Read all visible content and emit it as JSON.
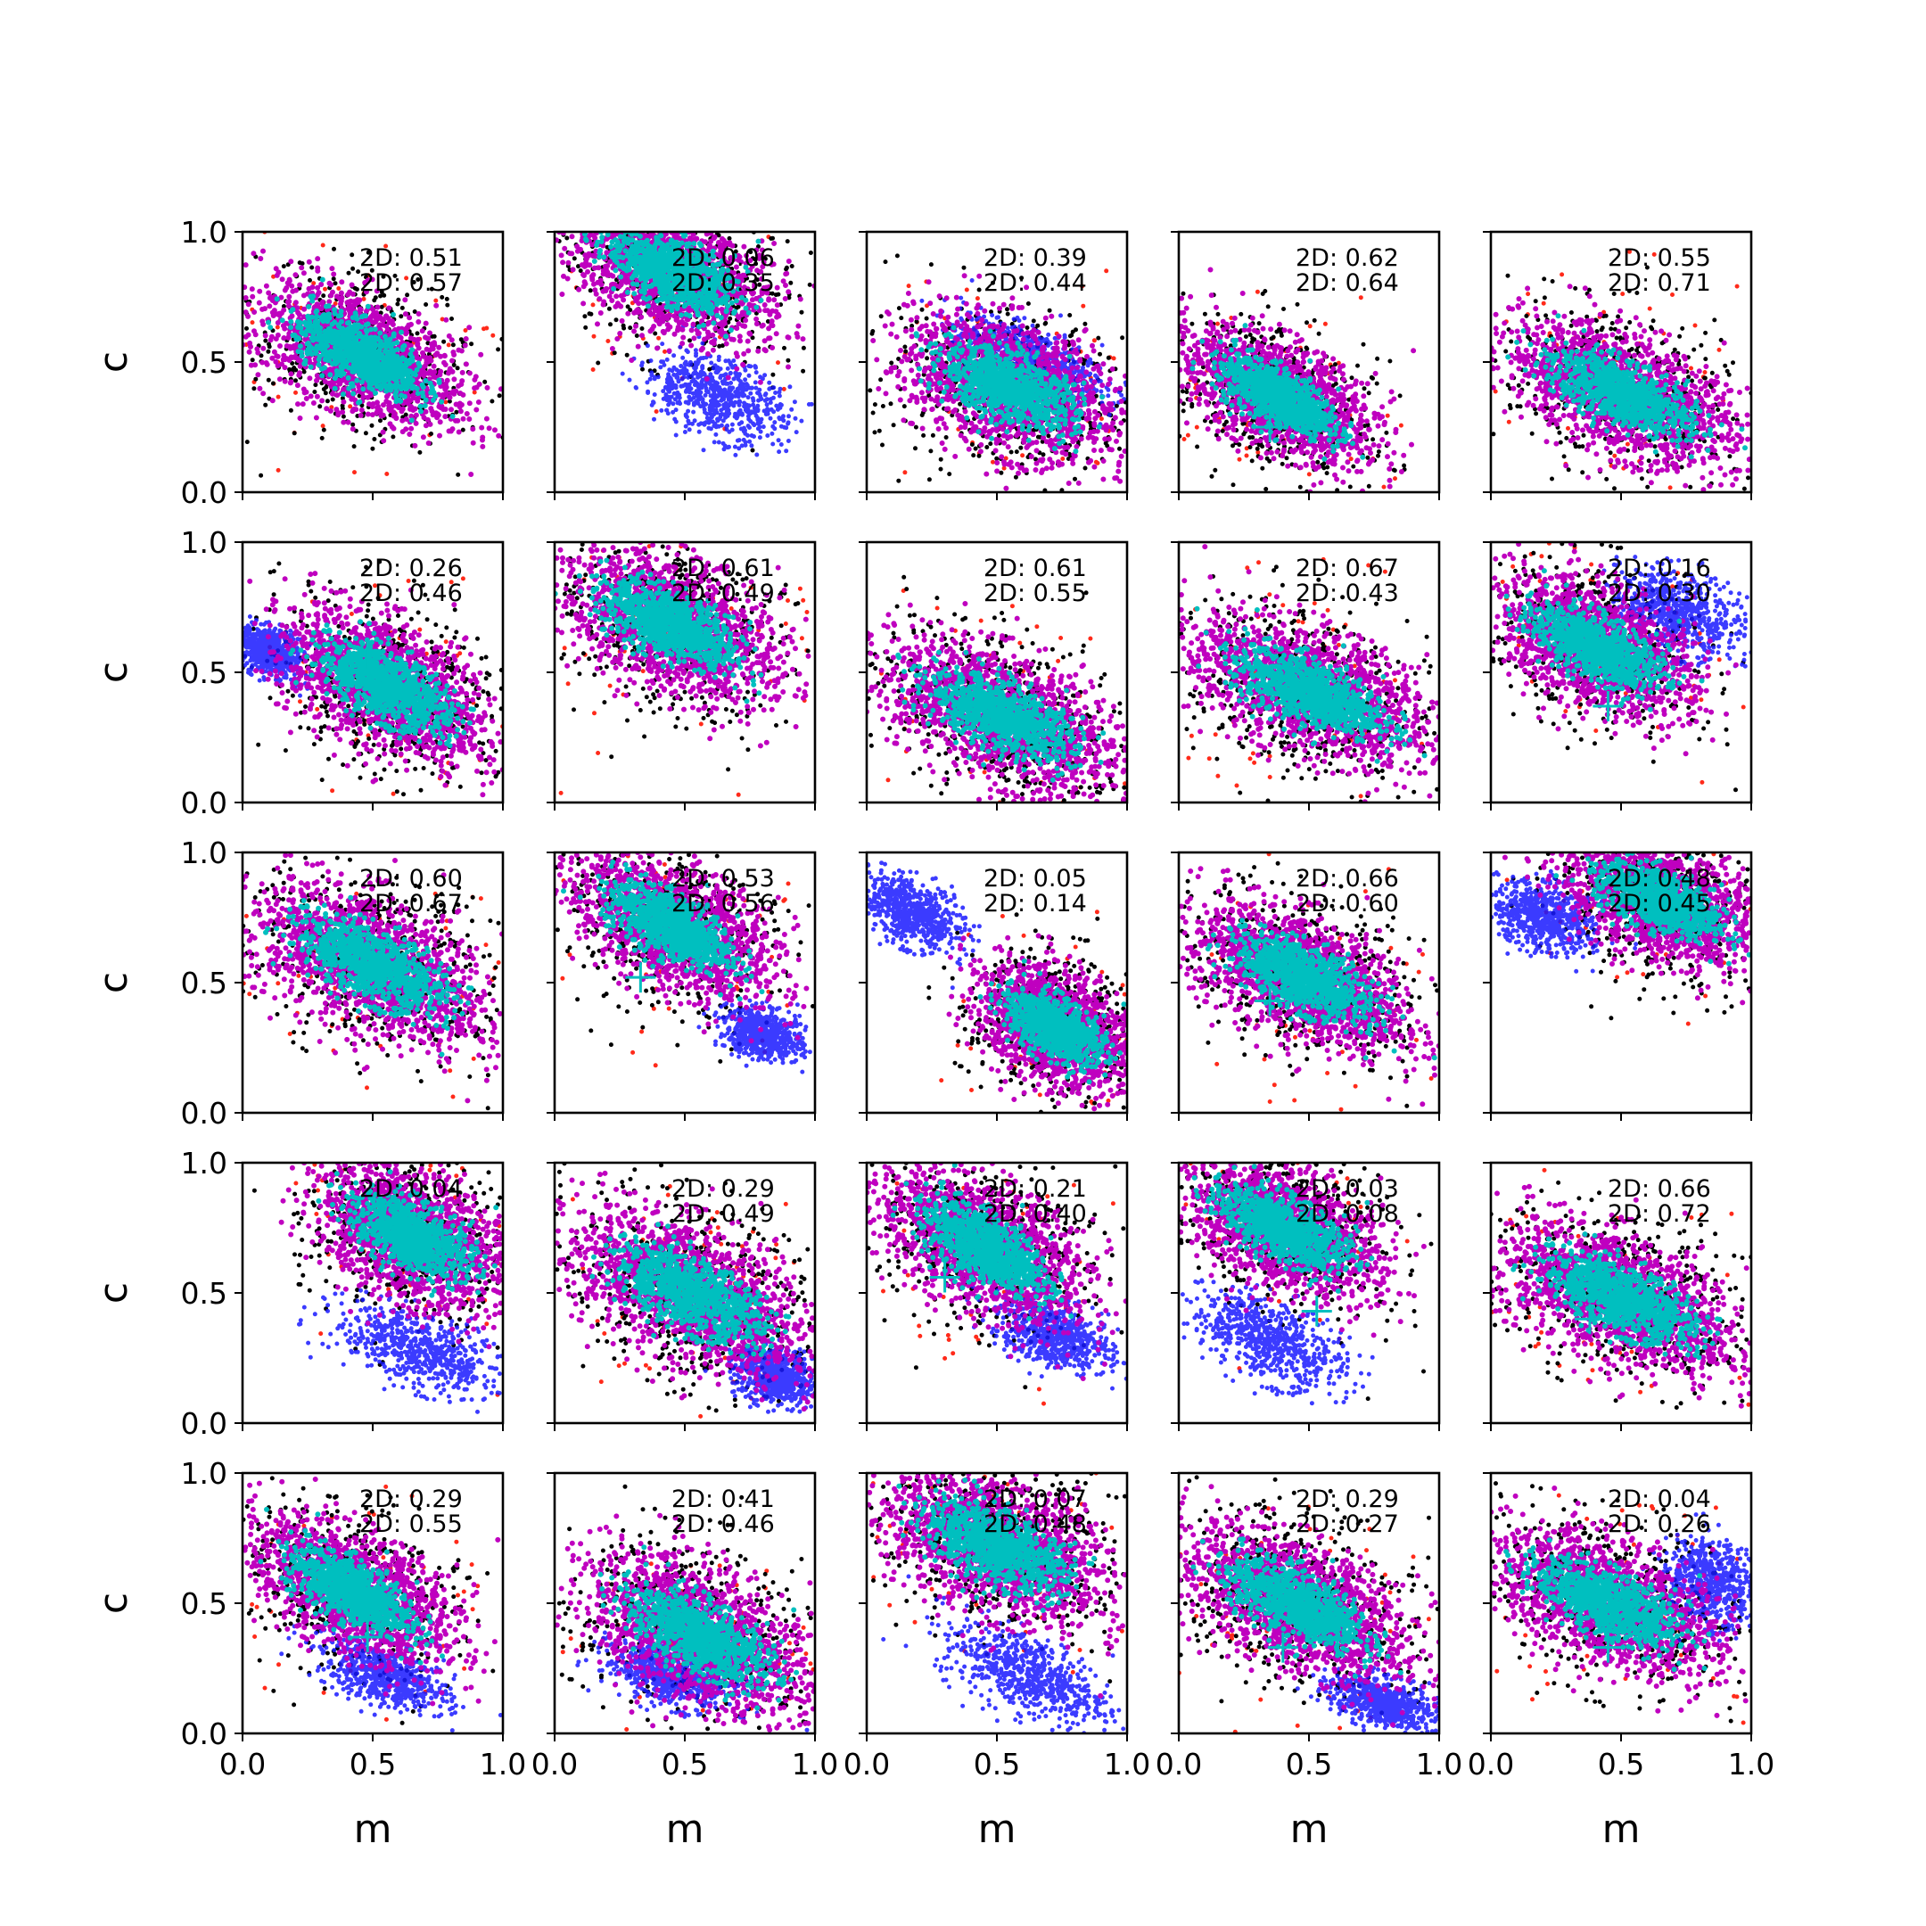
{
  "chart_data": {
    "type": "scatter",
    "layout": "5x5 grid of panels sharing axes",
    "xlabel": "m",
    "ylabel": "c",
    "xlim": [
      0.0,
      1.0
    ],
    "ylim": [
      0.0,
      1.0
    ],
    "xticks": [
      "0.0",
      "0.5",
      "1.0"
    ],
    "yticks": [
      "0.0",
      "0.5",
      "1.0"
    ],
    "grid": false,
    "series_colors": {
      "red": "#ff2a1a",
      "black": "#000000",
      "blue": "#1a1aff",
      "magenta": "#bf00bf",
      "cyan": "#00bfbf",
      "marker": "#00bfbf"
    },
    "panels": [
      {
        "row": 0,
        "col": 0,
        "ann": [
          "2D: 0.51",
          "2D: 0.57"
        ],
        "main": {
          "cx": 0.45,
          "cy": 0.53,
          "slope": -0.5,
          "len": 0.8,
          "width": 0.24
        },
        "blue": null,
        "marker": null
      },
      {
        "row": 0,
        "col": 1,
        "ann": [
          "2D: 0.06",
          "2D: 0.35"
        ],
        "main": {
          "cx": 0.45,
          "cy": 0.85,
          "slope": -0.5,
          "len": 0.8,
          "width": 0.26
        },
        "blue": {
          "cx": 0.62,
          "cy": 0.37,
          "slope": -0.38,
          "len": 0.55,
          "width": 0.16
        },
        "marker": null
      },
      {
        "row": 0,
        "col": 2,
        "ann": [
          "2D: 0.39",
          "2D: 0.44"
        ],
        "main": {
          "cx": 0.55,
          "cy": 0.4,
          "slope": -0.42,
          "len": 0.85,
          "width": 0.27
        },
        "blue": {
          "cx": 0.62,
          "cy": 0.52,
          "slope": -0.4,
          "len": 0.6,
          "width": 0.12
        },
        "marker": null
      },
      {
        "row": 0,
        "col": 3,
        "ann": [
          "2D: 0.62",
          "2D: 0.64"
        ],
        "main": {
          "cx": 0.38,
          "cy": 0.37,
          "slope": -0.55,
          "len": 0.75,
          "width": 0.22
        },
        "blue": null,
        "marker": {
          "x": 0.35,
          "y": 0.25
        }
      },
      {
        "row": 0,
        "col": 4,
        "ann": [
          "2D: 0.55",
          "2D: 0.71"
        ],
        "main": {
          "cx": 0.5,
          "cy": 0.38,
          "slope": -0.45,
          "len": 0.9,
          "width": 0.24
        },
        "blue": null,
        "marker": null
      },
      {
        "row": 1,
        "col": 0,
        "ann": [
          "2D: 0.26",
          "2D: 0.46"
        ],
        "main": {
          "cx": 0.55,
          "cy": 0.45,
          "slope": -0.55,
          "len": 0.85,
          "width": 0.26
        },
        "blue": {
          "cx": 0.1,
          "cy": 0.58,
          "slope": -0.5,
          "len": 0.25,
          "width": 0.1
        },
        "marker": {
          "x": 0.48,
          "y": 0.57
        }
      },
      {
        "row": 1,
        "col": 1,
        "ann": [
          "2D: 0.61",
          "2D: 0.49"
        ],
        "main": {
          "cx": 0.45,
          "cy": 0.68,
          "slope": -0.5,
          "len": 0.85,
          "width": 0.27
        },
        "blue": null,
        "marker": null
      },
      {
        "row": 1,
        "col": 2,
        "ann": [
          "2D: 0.61",
          "2D: 0.55"
        ],
        "main": {
          "cx": 0.52,
          "cy": 0.33,
          "slope": -0.45,
          "len": 0.95,
          "width": 0.26
        },
        "blue": null,
        "marker": null
      },
      {
        "row": 1,
        "col": 3,
        "ann": [
          "2D: 0.67",
          "2D: 0.43"
        ],
        "main": {
          "cx": 0.5,
          "cy": 0.43,
          "slope": -0.42,
          "len": 0.95,
          "width": 0.26
        },
        "blue": null,
        "marker": null
      },
      {
        "row": 1,
        "col": 4,
        "ann": [
          "2D: 0.16",
          "2D: 0.30"
        ],
        "main": {
          "cx": 0.4,
          "cy": 0.6,
          "slope": -0.5,
          "len": 0.8,
          "width": 0.24
        },
        "blue": {
          "cx": 0.72,
          "cy": 0.73,
          "slope": -0.35,
          "len": 0.5,
          "width": 0.17
        },
        "marker": {
          "x": 0.45,
          "y": 0.37
        }
      },
      {
        "row": 2,
        "col": 0,
        "ann": [
          "2D: 0.60",
          "2D: 0.67"
        ],
        "main": {
          "cx": 0.5,
          "cy": 0.57,
          "slope": -0.5,
          "len": 0.95,
          "width": 0.28
        },
        "blue": null,
        "marker": null
      },
      {
        "row": 2,
        "col": 1,
        "ann": [
          "2D: 0.53",
          "2D: 0.56"
        ],
        "main": {
          "cx": 0.45,
          "cy": 0.72,
          "slope": -0.55,
          "len": 0.8,
          "width": 0.25
        },
        "blue": {
          "cx": 0.8,
          "cy": 0.3,
          "slope": -0.3,
          "len": 0.3,
          "width": 0.1
        },
        "marker": {
          "x": 0.33,
          "y": 0.52
        }
      },
      {
        "row": 2,
        "col": 2,
        "ann": [
          "2D: 0.05",
          "2D: 0.14"
        ],
        "main": {
          "cx": 0.72,
          "cy": 0.33,
          "slope": -0.6,
          "len": 0.6,
          "width": 0.22
        },
        "blue": {
          "cx": 0.17,
          "cy": 0.77,
          "slope": -0.55,
          "len": 0.42,
          "width": 0.13
        },
        "marker": {
          "x": 0.63,
          "y": 0.39
        }
      },
      {
        "row": 2,
        "col": 3,
        "ann": [
          "2D: 0.66",
          "2D: 0.60"
        ],
        "main": {
          "cx": 0.48,
          "cy": 0.52,
          "slope": -0.5,
          "len": 0.85,
          "width": 0.25
        },
        "blue": null,
        "marker": {
          "x": 0.35,
          "y": 0.43
        }
      },
      {
        "row": 2,
        "col": 4,
        "ann": [
          "2D: 0.48",
          "2D: 0.45"
        ],
        "main": {
          "cx": 0.65,
          "cy": 0.82,
          "slope": -0.45,
          "len": 0.75,
          "width": 0.24
        },
        "blue": {
          "cx": 0.2,
          "cy": 0.75,
          "slope": -0.35,
          "len": 0.4,
          "width": 0.14
        },
        "marker": null
      },
      {
        "row": 3,
        "col": 0,
        "ann": [
          "2D: 0.04",
          ""
        ],
        "main": {
          "cx": 0.65,
          "cy": 0.72,
          "slope": -0.55,
          "len": 0.75,
          "width": 0.26
        },
        "blue": {
          "cx": 0.68,
          "cy": 0.28,
          "slope": -0.4,
          "len": 0.65,
          "width": 0.15
        },
        "marker": {
          "x": 0.58,
          "y": 0.7
        }
      },
      {
        "row": 3,
        "col": 1,
        "ann": [
          "2D: 0.29",
          "2D: 0.49"
        ],
        "main": {
          "cx": 0.52,
          "cy": 0.5,
          "slope": -0.5,
          "len": 0.95,
          "width": 0.28
        },
        "blue": {
          "cx": 0.85,
          "cy": 0.18,
          "slope": -0.4,
          "len": 0.3,
          "width": 0.12
        },
        "marker": null
      },
      {
        "row": 3,
        "col": 2,
        "ann": [
          "2D: 0.21",
          "2D: 0.40"
        ],
        "main": {
          "cx": 0.45,
          "cy": 0.68,
          "slope": -0.6,
          "len": 0.8,
          "width": 0.26
        },
        "blue": {
          "cx": 0.72,
          "cy": 0.34,
          "slope": -0.35,
          "len": 0.45,
          "width": 0.13
        },
        "marker": {
          "x": 0.3,
          "y": 0.56
        }
      },
      {
        "row": 3,
        "col": 3,
        "ann": [
          "2D: 0.03",
          "2D: 0.08"
        ],
        "main": {
          "cx": 0.4,
          "cy": 0.75,
          "slope": -0.5,
          "len": 0.8,
          "width": 0.24
        },
        "blue": {
          "cx": 0.35,
          "cy": 0.32,
          "slope": -0.45,
          "len": 0.6,
          "width": 0.16
        },
        "marker": {
          "x": 0.53,
          "y": 0.43
        }
      },
      {
        "row": 3,
        "col": 4,
        "ann": [
          "2D: 0.66",
          "2D: 0.72"
        ],
        "main": {
          "cx": 0.5,
          "cy": 0.48,
          "slope": -0.45,
          "len": 0.95,
          "width": 0.26
        },
        "blue": null,
        "marker": {
          "x": 0.38,
          "y": 0.4
        }
      },
      {
        "row": 4,
        "col": 0,
        "ann": [
          "2D: 0.29",
          "2D: 0.55"
        ],
        "main": {
          "cx": 0.42,
          "cy": 0.55,
          "slope": -0.55,
          "len": 0.8,
          "width": 0.24
        },
        "blue": {
          "cx": 0.55,
          "cy": 0.22,
          "slope": -0.35,
          "len": 0.5,
          "width": 0.12
        },
        "marker": {
          "x": 0.48,
          "y": 0.37
        }
      },
      {
        "row": 4,
        "col": 1,
        "ann": [
          "2D: 0.41",
          "2D: 0.46"
        ],
        "main": {
          "cx": 0.55,
          "cy": 0.38,
          "slope": -0.55,
          "len": 0.9,
          "width": 0.27
        },
        "blue": {
          "cx": 0.45,
          "cy": 0.22,
          "slope": -0.3,
          "len": 0.5,
          "width": 0.12
        },
        "marker": {
          "x": 0.4,
          "y": 0.47
        }
      },
      {
        "row": 4,
        "col": 2,
        "ann": [
          "2D: 0.07",
          "2D: 0.48"
        ],
        "main": {
          "cx": 0.5,
          "cy": 0.72,
          "slope": -0.45,
          "len": 0.9,
          "width": 0.28
        },
        "blue": {
          "cx": 0.62,
          "cy": 0.23,
          "slope": -0.45,
          "len": 0.65,
          "width": 0.16
        },
        "marker": null
      },
      {
        "row": 4,
        "col": 3,
        "ann": [
          "2D: 0.29",
          "2D: 0.27"
        ],
        "main": {
          "cx": 0.45,
          "cy": 0.5,
          "slope": -0.5,
          "len": 0.9,
          "width": 0.26
        },
        "blue": {
          "cx": 0.78,
          "cy": 0.12,
          "slope": -0.3,
          "len": 0.4,
          "width": 0.1
        },
        "marker": {
          "x": 0.4,
          "y": 0.33
        }
      },
      {
        "row": 4,
        "col": 4,
        "ann": [
          "2D: 0.04",
          "2D: 0.26"
        ],
        "main": {
          "cx": 0.45,
          "cy": 0.5,
          "slope": -0.45,
          "len": 0.9,
          "width": 0.25
        },
        "blue": {
          "cx": 0.85,
          "cy": 0.58,
          "slope": -0.4,
          "len": 0.4,
          "width": 0.17
        },
        "marker": {
          "x": 0.45,
          "y": 0.33
        }
      }
    ]
  }
}
